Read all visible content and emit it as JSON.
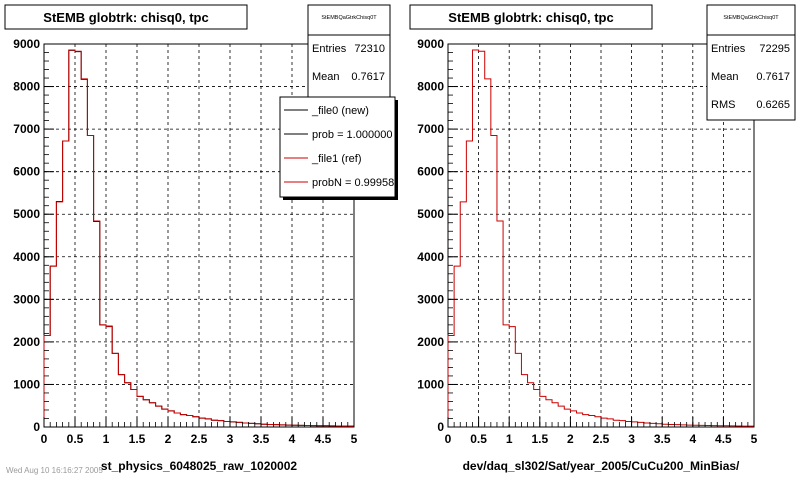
{
  "chart_data": [
    {
      "type": "histogram",
      "title": "StEMB globtrk: chisq0, tpc",
      "xlabel": "st_physics_6048025_raw_1020002",
      "xlim": [
        0,
        5
      ],
      "ylim": [
        0,
        9000
      ],
      "x_ticks": [
        "0",
        "0.5",
        "1",
        "1.5",
        "2",
        "2.5",
        "3",
        "3.5",
        "4",
        "4.5",
        "5"
      ],
      "y_ticks": [
        "0",
        "1000",
        "2000",
        "3000",
        "4000",
        "5000",
        "6000",
        "7000",
        "8000",
        "9000"
      ],
      "grid": true,
      "bin_width": 0.1,
      "stats": {
        "name": "StEMBQaGtrkChisq0T",
        "entries_label": "Entries",
        "entries": "72310",
        "mean_label": "Mean",
        "mean": "0.7617"
      },
      "legend": [
        {
          "label": "_file0 (new)",
          "color": "#000000"
        },
        {
          "label": "prob = 1.000000",
          "color": "#000000"
        },
        {
          "label": "_file1 (ref)",
          "color": "#cc0000"
        },
        {
          "label": "probN = 0.999589",
          "color": "#cc0000"
        }
      ],
      "series": [
        {
          "name": "_file0 (new)",
          "color": "#000000",
          "values": [
            2150,
            3780,
            5300,
            6720,
            8850,
            8820,
            8170,
            6850,
            4830,
            2400,
            2370,
            1730,
            1230,
            1040,
            880,
            720,
            640,
            570,
            490,
            420,
            380,
            330,
            290,
            270,
            240,
            210,
            190,
            160,
            150,
            130,
            120,
            110,
            95,
            85,
            75,
            65,
            60,
            55,
            50,
            45,
            40,
            38,
            35,
            32,
            30,
            28,
            26,
            24,
            22,
            20
          ]
        },
        {
          "name": "_file1 (ref)",
          "color": "#cc0000",
          "values": [
            2150,
            3780,
            5290,
            6720,
            8860,
            8830,
            8180,
            6850,
            4840,
            2400,
            2360,
            1730,
            1230,
            1040,
            880,
            720,
            640,
            570,
            490,
            420,
            380,
            330,
            290,
            270,
            240,
            210,
            190,
            160,
            150,
            130,
            120,
            110,
            95,
            85,
            75,
            65,
            60,
            55,
            50,
            45,
            40,
            38,
            35,
            32,
            30,
            28,
            26,
            24,
            22,
            20
          ]
        }
      ]
    },
    {
      "type": "histogram",
      "title": "StEMB globtrk: chisq0, tpc",
      "xlabel": "dev/daq_sl302/Sat/year_2005/CuCu200_MinBias/",
      "xlim": [
        0,
        5
      ],
      "ylim": [
        0,
        9000
      ],
      "x_ticks": [
        "0",
        "0.5",
        "1",
        "1.5",
        "2",
        "2.5",
        "3",
        "3.5",
        "4",
        "4.5",
        "5"
      ],
      "y_ticks": [
        "0",
        "1000",
        "2000",
        "3000",
        "4000",
        "5000",
        "6000",
        "7000",
        "8000",
        "9000"
      ],
      "grid": true,
      "bin_width": 0.1,
      "stats": {
        "name": "StEMBQaGtrkChisq0T",
        "entries_label": "Entries",
        "entries": "72295",
        "mean_label": "Mean",
        "mean": "0.7617",
        "rms_label": "RMS",
        "rms": "0.6265"
      },
      "series": [
        {
          "name": "",
          "color": "#cc0000",
          "values": [
            2150,
            3780,
            5290,
            6720,
            8860,
            8830,
            8180,
            6850,
            4840,
            2400,
            2360,
            1730,
            1230,
            1040,
            880,
            720,
            640,
            570,
            490,
            420,
            380,
            330,
            290,
            270,
            240,
            210,
            190,
            160,
            150,
            130,
            120,
            110,
            95,
            85,
            75,
            65,
            60,
            55,
            50,
            45,
            40,
            38,
            35,
            32,
            30,
            28,
            26,
            24,
            22,
            20
          ]
        }
      ]
    }
  ],
  "footer": "Wed Aug 10 16:16:27 2005"
}
